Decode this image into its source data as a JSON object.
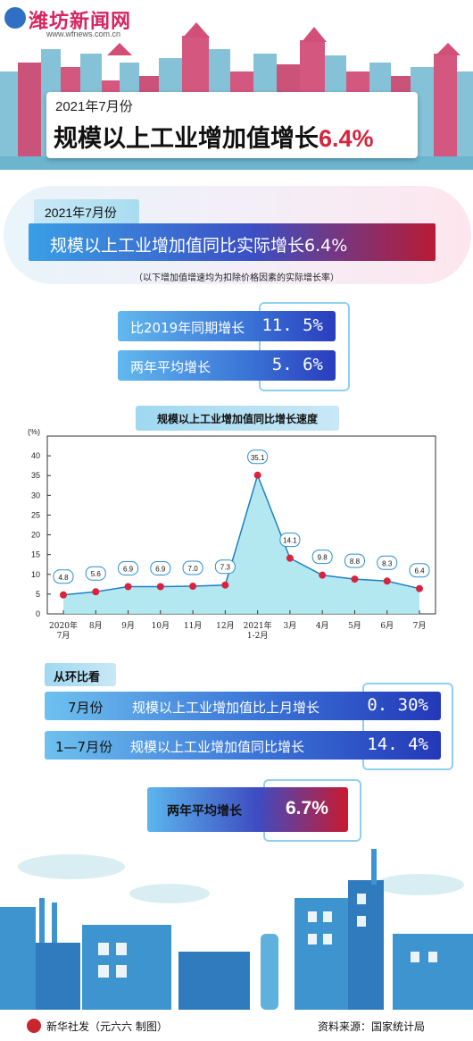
{
  "site": {
    "name": "潍坊新闻网",
    "url": "www.wfnews.com.cn"
  },
  "header": {
    "subtitle": "2021年7月份",
    "title_prefix": "规模以上工业增加值增长",
    "title_value": "6.4%"
  },
  "summary": {
    "month": "2021年7月份",
    "headline": "规模以上工业增加值同比实际增长6.4%",
    "note": "（以下增加值增速均为扣除价格因素的实际增长率）"
  },
  "stats": [
    {
      "label": "比2019年同期增长",
      "value": "11. 5%"
    },
    {
      "label": "两年平均增长",
      "value": "5. 6%"
    }
  ],
  "chart_data": {
    "type": "area",
    "title": "规模以上工业增加值同比增长速度",
    "ylabel": "(%)",
    "ylim": [
      0,
      45
    ],
    "yticks": [
      "0",
      "5",
      "10",
      "15",
      "20",
      "25",
      "30",
      "35",
      "40"
    ],
    "categories": [
      "2020年\n7月",
      "8月",
      "9月",
      "10月",
      "11月",
      "12月",
      "2021年\n1-2月",
      "3月",
      "4月",
      "5月",
      "6月",
      "7月"
    ],
    "series": [
      {
        "values": [
          4.8,
          5.6,
          6.9,
          6.9,
          7.0,
          7.3,
          35.1,
          14.1,
          9.8,
          8.8,
          8.3,
          6.4
        ]
      }
    ],
    "data_labels": [
      "4.8",
      "5.6",
      "6.9",
      "6.9",
      "7.0",
      "7.3",
      "35.1",
      "14.1",
      "9.8",
      "8.8",
      "8.3",
      "6.4"
    ],
    "grid": false,
    "colors": {
      "area": "#a6e4ee",
      "line": "#1e7fc0",
      "point": "#d7233d"
    }
  },
  "mom": {
    "section_label": "从环比看",
    "rows": [
      {
        "month": "7月份",
        "desc": "规模以上工业增加值比上月增长",
        "value": "0. 30%"
      },
      {
        "month": "1—7月份",
        "desc": "规模以上工业增加值同比增长",
        "value": "14. 4%"
      }
    ]
  },
  "two_year": {
    "label": "两年平均增长",
    "value": "6.7%"
  },
  "footer": {
    "credit": "新华社发（元六六 制图）",
    "source": "资料来源：国家统计局"
  },
  "colors": {
    "accent_red": "#d7233d",
    "accent_blue": "#2a3dbd",
    "light_blue": "#8fd0f2"
  }
}
